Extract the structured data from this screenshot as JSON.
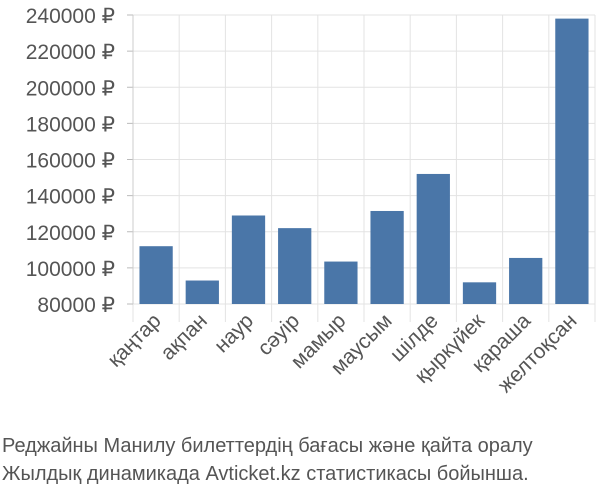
{
  "chart_data": {
    "type": "bar",
    "categories": [
      "қаңтар",
      "ақпан",
      "наур",
      "сәуір",
      "мамыр",
      "маусым",
      "шілде",
      "қыркүйек",
      "қараша",
      "желтоқсан"
    ],
    "values": [
      112000,
      93000,
      129000,
      122000,
      103500,
      131500,
      152000,
      92000,
      105500,
      238000
    ],
    "ylim": [
      80000,
      240000
    ],
    "yticks": [
      80000,
      100000,
      120000,
      140000,
      160000,
      180000,
      200000,
      220000,
      240000
    ],
    "tick_suffix": " ₽",
    "bar_color": "#4a76a8",
    "grid": true
  },
  "caption": {
    "line1": "Реджайны Манилу билеттердің бағасы және қайта оралу",
    "line2": "Жылдық динамикада Avticket.kz статистикасы бойынша."
  }
}
